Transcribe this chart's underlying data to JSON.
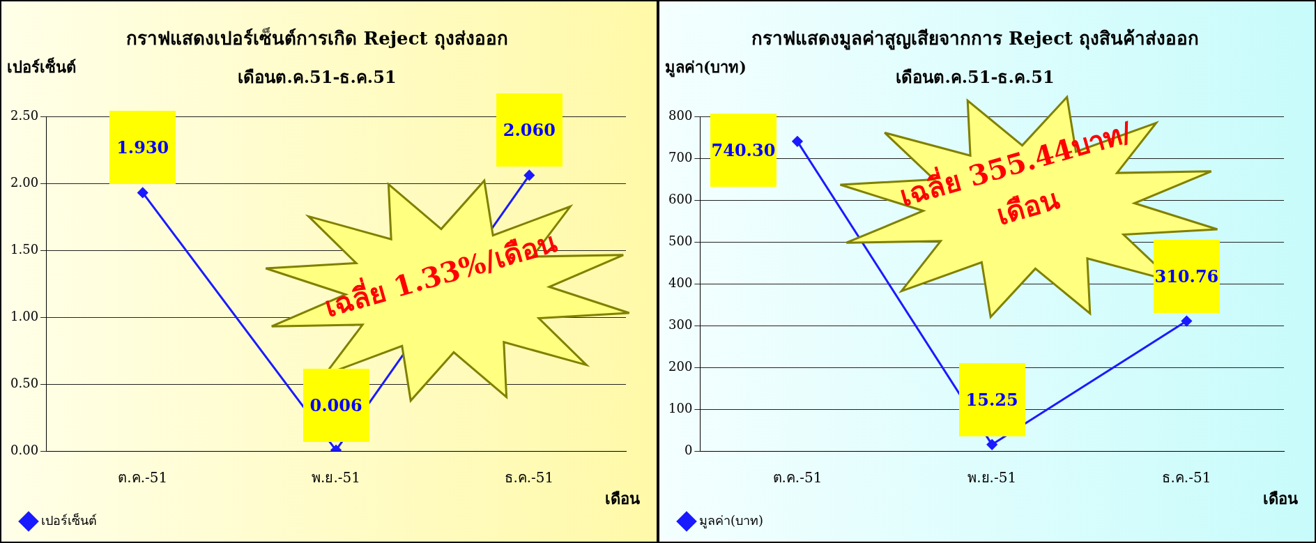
{
  "chart_data": [
    {
      "type": "line",
      "title": "กราฟแสดงเปอร์เซ็นต์การเกิด Reject ถุงส่งออก",
      "subtitle": "เดือนต.ค.51-ธ.ค.51",
      "ylabel": "เปอร์เซ็นต์",
      "xlabel": "เดือน",
      "categories": [
        "ต.ค.-51",
        "พ.ย.-51",
        "ธ.ค.-51"
      ],
      "series": [
        {
          "name": "เปอร์เซ็นต์",
          "color": "#1a1aff",
          "values": [
            1.93,
            0.006,
            2.06
          ],
          "value_labels": [
            "1.930",
            "0.006",
            "2.060"
          ]
        }
      ],
      "ylim": [
        0,
        2.5
      ],
      "yticks": [
        {
          "value": 0,
          "label": "0.00"
        },
        {
          "value": 0.5,
          "label": "0.50"
        },
        {
          "value": 1,
          "label": "1.00"
        },
        {
          "value": 1.5,
          "label": "1.50"
        },
        {
          "value": 2,
          "label": "2.00"
        },
        {
          "value": 2.5,
          "label": "2.50"
        }
      ],
      "grid": "y",
      "legend": "bottom left",
      "marker": "diamond",
      "annotations": [
        "เฉลี่ย 1.33%/เดือน"
      ]
    },
    {
      "type": "line",
      "title": "กราฟแสดงมูลค่าสูญเสียจากการ Reject ถุงสินค้าส่งออก",
      "subtitle": "เดือนต.ค.51-ธ.ค.51",
      "ylabel": "มูลค่า(บาท)",
      "xlabel": "เดือน",
      "categories": [
        "ต.ค.-51",
        "พ.ย.-51",
        "ธ.ค.-51"
      ],
      "series": [
        {
          "name": "มูลค่า(บาท)",
          "color": "#1a1aff",
          "values": [
            740.3,
            15.25,
            310.76
          ],
          "value_labels": [
            "740.30",
            "15.25",
            "310.76"
          ]
        }
      ],
      "ylim": [
        0,
        800
      ],
      "yticks": [
        0,
        100,
        200,
        300,
        400,
        500,
        600,
        700,
        800
      ],
      "grid": "y",
      "legend": "bottom left",
      "marker": "diamond",
      "annotations": [
        "เฉลี่ย 355.44บาท/เดือน"
      ]
    }
  ]
}
